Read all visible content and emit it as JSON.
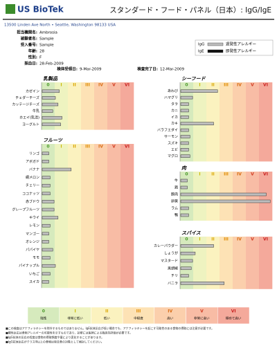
{
  "header": {
    "logo": "US BioTek",
    "title": "スタンダード・フード・パネル（日本）: IgG/IgE",
    "address": "13500 Linden Ave North • Seattle, Washington 98133 USA"
  },
  "info": {
    "fields": [
      {
        "label": "担当機関名:",
        "value": "Ambrosia"
      },
      {
        "label": "被験者名:",
        "value": "Sample"
      },
      {
        "label": "受入番号:",
        "value": "Sample"
      },
      {
        "label": "年齢:",
        "value": "28"
      },
      {
        "label": "性別:",
        "value": "F"
      },
      {
        "label": "採血日:",
        "value": "28-Feb-2009"
      }
    ],
    "received": {
      "label": "検体受領日:",
      "value": "9-Mar-2009"
    },
    "completed": {
      "label": "検査完了日:",
      "value": "12-Mar-2009"
    }
  },
  "legend": [
    {
      "name": "IgG",
      "text": "遅発性アレルギー",
      "color": "#bdbdbd"
    },
    {
      "name": "IgE",
      "text": "即発性アレルギー",
      "color": "#111111"
    }
  ],
  "chart_data": {
    "type": "bar",
    "classes": [
      "0",
      "I",
      "II",
      "III",
      "IV",
      "V",
      "VI"
    ],
    "class_colors": [
      "#4a9a2c",
      "#c9b800",
      "#d9a400",
      "#e08a00",
      "#d86a10",
      "#d03a20",
      "#c81e1e"
    ],
    "band_colors": [
      "#d6eabd",
      "#eef3c0",
      "#fbf2bf",
      "#fde2b5",
      "#fbcfac",
      "#f8bca5",
      "#f4a99b"
    ],
    "xlim": [
      0,
      7
    ],
    "panels": [
      {
        "title": "乳製品",
        "items": [
          {
            "name": "カゼイン",
            "igg": 1.3
          },
          {
            "name": "チェダーチーズ",
            "igg": 1.0
          },
          {
            "name": "カッテージチーズ",
            "igg": 1.2
          },
          {
            "name": "牛乳",
            "igg": 0.8
          },
          {
            "name": "ホエイ(乳清)",
            "igg": 1.5
          },
          {
            "name": "ヨーグルト",
            "igg": 1.4
          }
        ]
      },
      {
        "title": "フルーツ",
        "items": [
          {
            "name": "リンゴ",
            "igg": 0.5
          },
          {
            "name": "アボガド",
            "igg": 0.5
          },
          {
            "name": "バナナ",
            "igg": 2.2
          },
          {
            "name": "網メロン",
            "igg": 0.6
          },
          {
            "name": "チェリー",
            "igg": 0.6
          },
          {
            "name": "ココナッツ",
            "igg": 0.6
          },
          {
            "name": "赤ブドウ",
            "igg": 0.9
          },
          {
            "name": "グレープフルーツ",
            "igg": 0.9
          },
          {
            "name": "キウイ",
            "igg": 1.2
          },
          {
            "name": "レモン",
            "igg": 0.6
          },
          {
            "name": "マンゴー",
            "igg": 0.5
          },
          {
            "name": "オレンジ",
            "igg": 0.5
          },
          {
            "name": "パパイヤ",
            "igg": 0.8
          },
          {
            "name": "モモ",
            "igg": 0.6
          },
          {
            "name": "パイナップル",
            "igg": 1.0
          },
          {
            "name": "いちご",
            "igg": 0.6
          },
          {
            "name": "スイカ",
            "igg": 0.5
          }
        ]
      },
      {
        "title": "シーフード",
        "items": [
          {
            "name": "あわび",
            "igg": 2.8
          },
          {
            "name": "ハマグリ",
            "igg": 0.9
          },
          {
            "name": "タラ",
            "igg": 0.6
          },
          {
            "name": "カニ",
            "igg": 0.6
          },
          {
            "name": "イカ",
            "igg": 0.6
          },
          {
            "name": "カキ",
            "igg": 2.5
          },
          {
            "name": "バラフエダイ",
            "igg": 0.6
          },
          {
            "name": "サーモン",
            "igg": 0.7
          },
          {
            "name": "スズキ",
            "igg": 0.6
          },
          {
            "name": "エビ",
            "igg": 0.6
          },
          {
            "name": "マグロ",
            "igg": 0.7
          }
        ]
      },
      {
        "title": "肉",
        "items": [
          {
            "name": "牛",
            "igg": 0.5
          },
          {
            "name": "鶏",
            "igg": 0.5
          },
          {
            "name": "豚肉",
            "igg": 6.5
          },
          {
            "name": "卵黄",
            "igg": 6.8
          },
          {
            "name": "ラム",
            "igg": 0.6
          },
          {
            "name": "鴨",
            "igg": 0.6
          }
        ]
      },
      {
        "title": "スパイス",
        "items": [
          {
            "name": "カレーパウダー",
            "igg": 2.5
          },
          {
            "name": "しょうが",
            "igg": 1.1
          },
          {
            "name": "マスタード",
            "igg": 0.9
          },
          {
            "name": "黒胡椒",
            "igg": 0.8
          },
          {
            "name": "チリ",
            "igg": 0.6
          },
          {
            "name": "バニラ",
            "igg": 3.3
          }
        ]
      }
    ],
    "class_descriptions": [
      "陰性",
      "非常に低い",
      "低い",
      "中程度",
      "高い",
      "非常に高い",
      "極めて高い"
    ]
  },
  "notes": [
    "■この検査はアナフィラキシーを除外するものではありません。IgE抗体反応が低い場合でも、アナフィラキシーを起こす可能性のある食物の摂取には注意が必要です。",
    "■陽性反応は食物アレルギーの可能性を示すものであり、診断には医師による臨床的評価が必要です。",
    "■IgG抗体の反応の程度は食物の摂取頻度や量により変化することがあります。",
    "■IgG抗体反応がクラスIII以上の食物は除去食の対象として検討してください。"
  ]
}
